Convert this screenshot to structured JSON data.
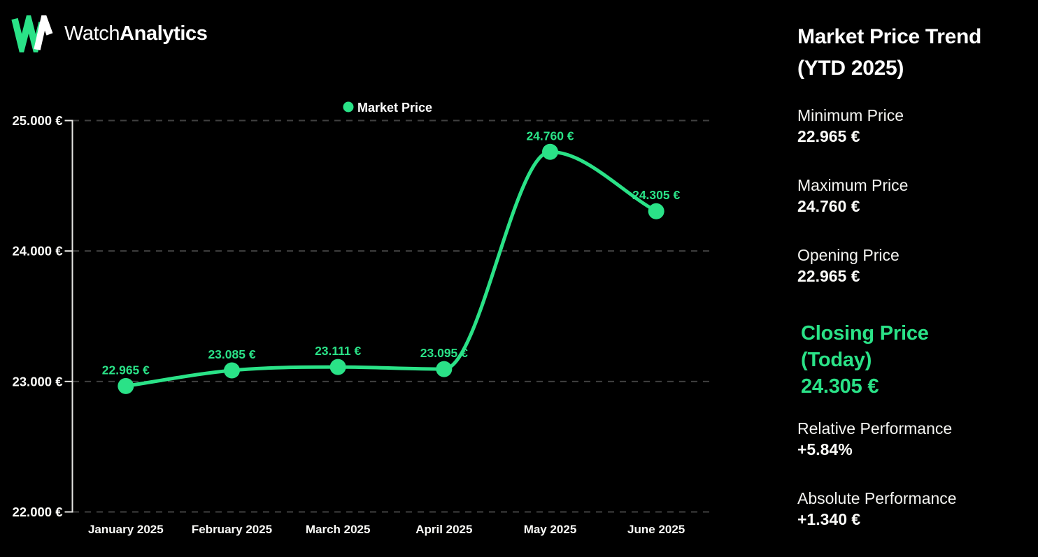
{
  "brand": {
    "name_regular": "Watch",
    "name_bold": "Analytics",
    "logo_icon": "wa-monogram-icon"
  },
  "colors": {
    "background": "#000000",
    "accent_green": "#2ae287",
    "text_white": "#fafaf7",
    "grid_gray": "#404040",
    "axis_gray": "#e6e6e3"
  },
  "chart_data": {
    "type": "line",
    "title": "",
    "xlabel": "",
    "ylabel": "",
    "legend": {
      "label": "Market Price",
      "position": "top-center",
      "marker": "circle"
    },
    "categories": [
      "January 2025",
      "February 2025",
      "March 2025",
      "April 2025",
      "May 2025",
      "June 2025"
    ],
    "series": [
      {
        "name": "Market Price",
        "values": [
          22965,
          23085,
          23111,
          23095,
          24760,
          24305
        ]
      }
    ],
    "point_labels": [
      "22.965 €",
      "23.085 €",
      "23.111 €",
      "23.095 €",
      "24.760 €",
      "24.305 €"
    ],
    "y_ticks": [
      "25.000 €",
      "24.000 €",
      "23.000 €",
      "22.000 €"
    ],
    "ylim": [
      22000,
      25000
    ],
    "grid": "horizontal-dashed",
    "line_style": "smooth-monotone"
  },
  "panel": {
    "title_line1": "Market Price Trend",
    "title_line2": "(YTD 2025)",
    "stats": [
      {
        "label": "Minimum Price",
        "value": "22.965 €"
      },
      {
        "label": "Maximum Price",
        "value": "24.760 €"
      },
      {
        "label": "Opening Price",
        "value": "22.965 €"
      }
    ],
    "closing": {
      "label_line1": "Closing Price",
      "label_line2": "(Today)",
      "value": "24.305 €"
    },
    "performance": [
      {
        "label": "Relative Performance",
        "value": "+5.84%"
      },
      {
        "label": "Absolute Performance",
        "value": "+1.340 €"
      }
    ]
  }
}
